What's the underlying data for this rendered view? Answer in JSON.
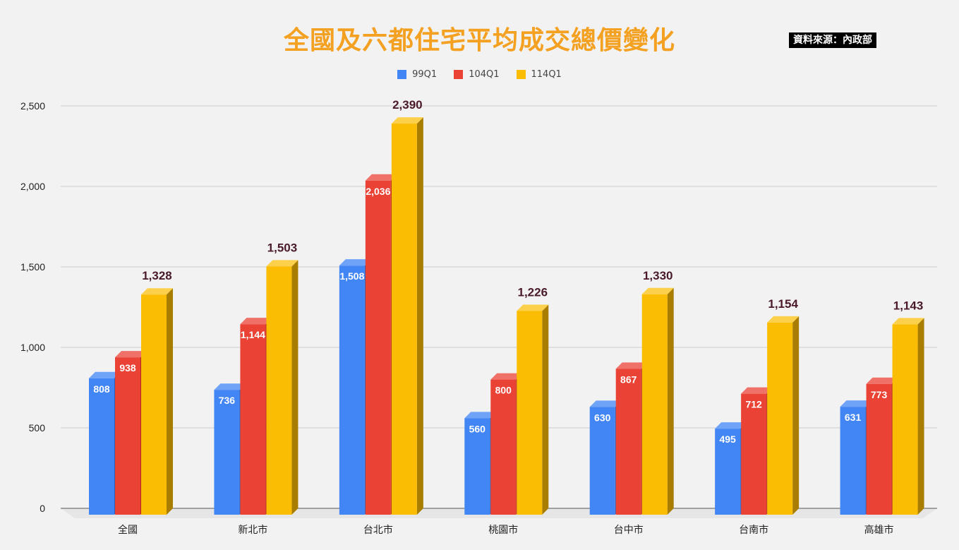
{
  "title": "全國及六都住宅平均成交總價變化",
  "source": "資料來源：內政部",
  "colors": {
    "series_front": [
      "#4285f4",
      "#ea4335",
      "#fbbc04"
    ],
    "series_top": [
      "#6fa3f7",
      "#f07167",
      "#fcd04a"
    ],
    "series_side": [
      "#2a5fb8",
      "#b3261e",
      "#a87d00"
    ],
    "grid": "#cccccc",
    "label_top": "#4a1a2a"
  },
  "chart_data": {
    "type": "bar",
    "title": "全國及六都住宅平均成交總價變化",
    "categories": [
      "全國",
      "新北市",
      "台北市",
      "桃園市",
      "台中市",
      "台南市",
      "高雄市"
    ],
    "series": [
      {
        "name": "99Q1",
        "values": [
          808,
          736,
          1508,
          560,
          630,
          495,
          631
        ]
      },
      {
        "name": "104Q1",
        "values": [
          938,
          1144,
          2036,
          800,
          867,
          712,
          773
        ]
      },
      {
        "name": "114Q1",
        "values": [
          1328,
          1503,
          2390,
          1226,
          1330,
          1154,
          1143
        ]
      }
    ],
    "value_labels": [
      [
        "808",
        "736",
        "1,508",
        "560",
        "630",
        "495",
        "631"
      ],
      [
        "938",
        "1,144",
        "2,036",
        "800",
        "867",
        "712",
        "773"
      ],
      [
        "1,328",
        "1,503",
        "2,390",
        "1,226",
        "1,330",
        "1,154",
        "1,143"
      ]
    ],
    "ylim": [
      0,
      2500
    ],
    "yticks": [
      0,
      500,
      1000,
      1500,
      2000,
      2500
    ],
    "ytick_labels": [
      "0",
      "500",
      "1,000",
      "1,500",
      "2,000",
      "2,500"
    ],
    "xlabel": "",
    "ylabel": "",
    "grid": true,
    "legend_position": "top-center",
    "style": "3d-bars"
  }
}
